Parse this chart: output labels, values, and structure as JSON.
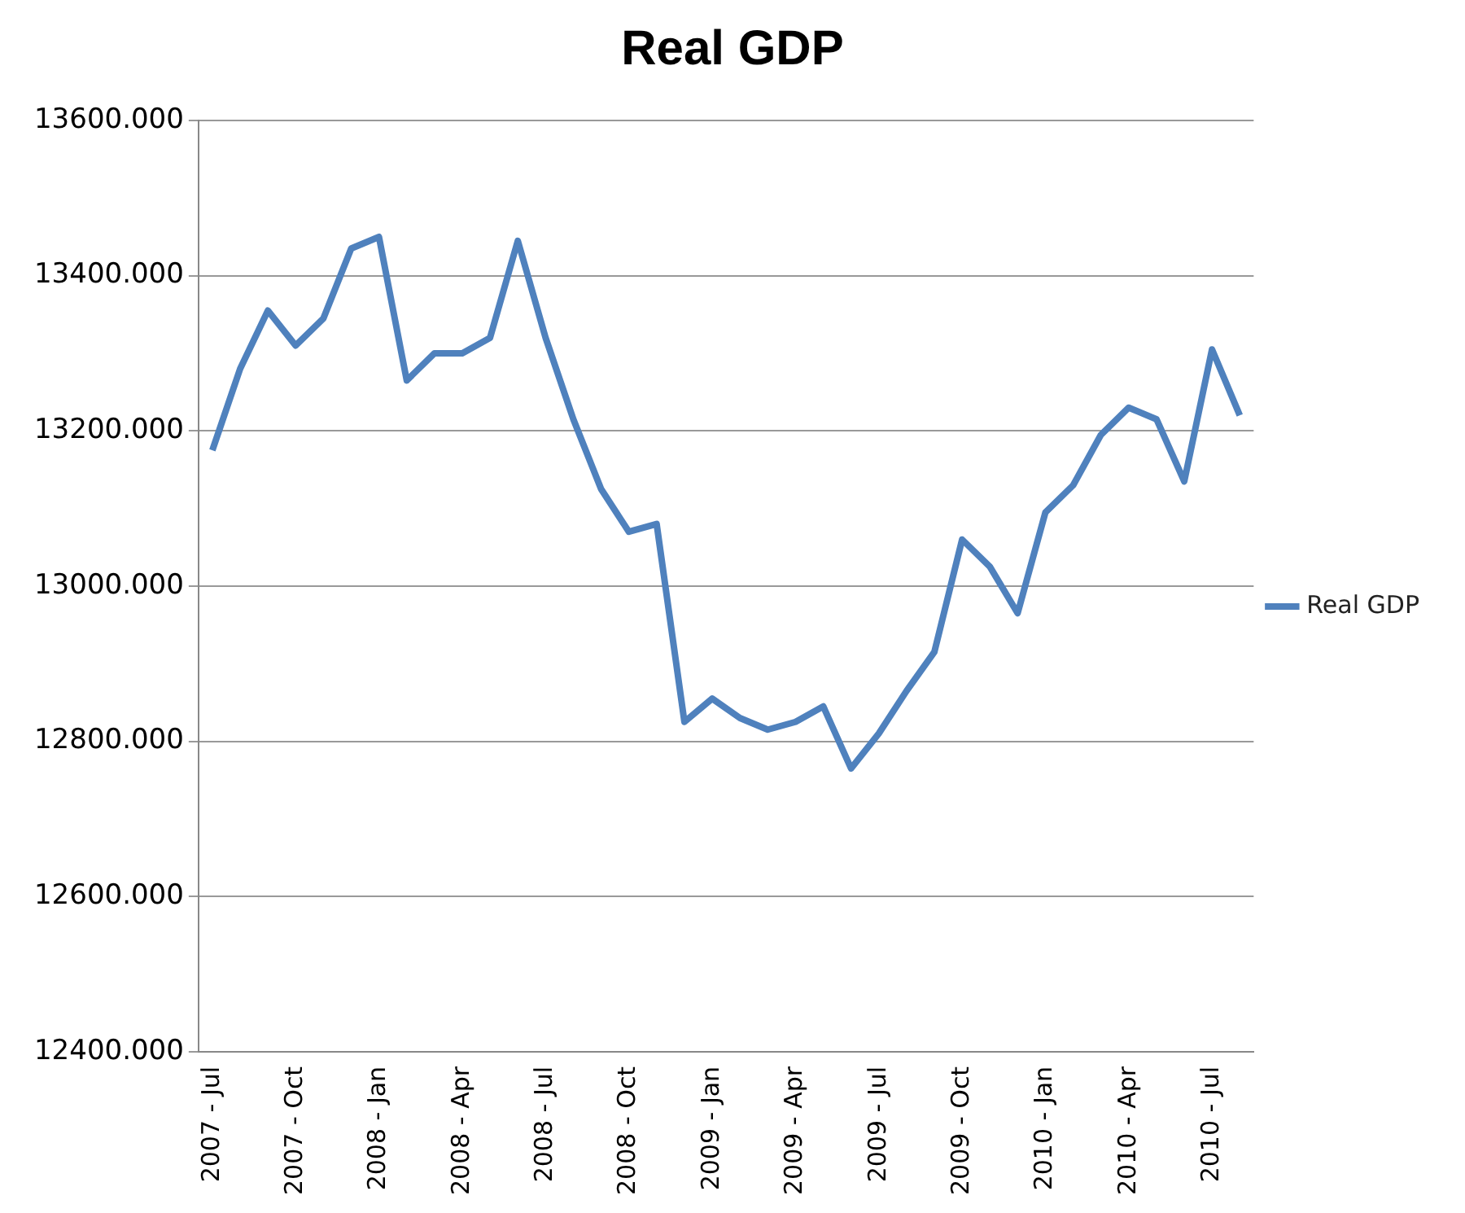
{
  "chart_data": {
    "type": "line",
    "title": "Real GDP",
    "categories": [
      "2007 - Jul",
      null,
      null,
      "2007 - Oct",
      null,
      null,
      "2008 - Jan",
      null,
      null,
      "2008 - Apr",
      null,
      null,
      "2008 - Jul",
      null,
      null,
      "2008 - Oct",
      null,
      null,
      "2009 - Jan",
      null,
      null,
      "2009 - Apr",
      null,
      null,
      "2009 - Jul",
      null,
      null,
      "2009 - Oct",
      null,
      null,
      "2010 - Jan",
      null,
      null,
      "2010 - Apr",
      null,
      null,
      "2010 - Jul",
      null
    ],
    "series": [
      {
        "name": "Real GDP",
        "color": "#4f81bd",
        "values": [
          13175,
          13280,
          13355,
          13310,
          13345,
          13435,
          13450,
          13265,
          13300,
          13300,
          13320,
          13445,
          13320,
          13215,
          13125,
          13070,
          13080,
          12825,
          12855,
          12830,
          12815,
          12825,
          12845,
          12765,
          12810,
          12865,
          12915,
          13060,
          13025,
          12965,
          13095,
          13130,
          13195,
          13230,
          13215,
          13135,
          13305,
          13220
        ]
      }
    ],
    "ylim": [
      12400,
      13600
    ],
    "yticks": [
      {
        "value": 12400,
        "label": "12400.000"
      },
      {
        "value": 12600,
        "label": "12600.000"
      },
      {
        "value": 12800,
        "label": "12800.000"
      },
      {
        "value": 13000,
        "label": "13000.000"
      },
      {
        "value": 13200,
        "label": "13200.000"
      },
      {
        "value": 13400,
        "label": "13400.000"
      },
      {
        "value": 13600,
        "label": "13600.000"
      }
    ],
    "grid": "y",
    "legend": "right",
    "marker": "none",
    "line_style": "solid"
  }
}
